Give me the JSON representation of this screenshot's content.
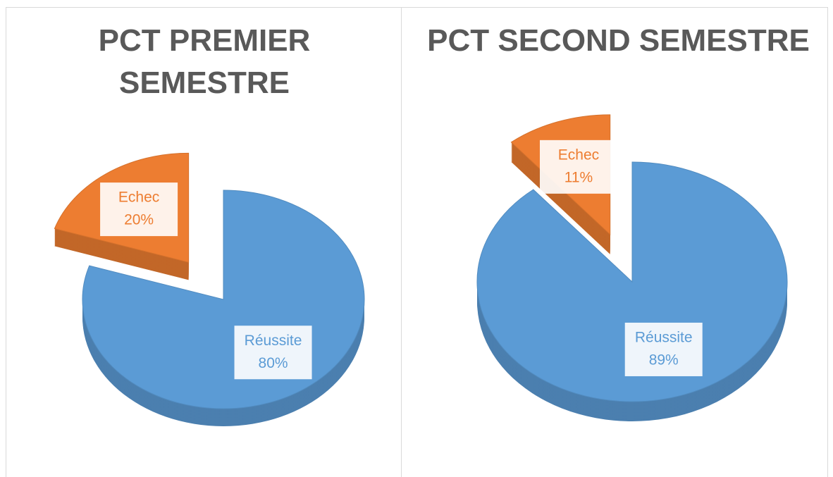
{
  "chart_data": [
    {
      "type": "pie",
      "title": "PCT PREMIER SEMESTRE",
      "categories": [
        "Réussite",
        "Echec"
      ],
      "values": [
        80,
        20
      ],
      "value_labels": [
        "80%",
        "20%"
      ],
      "colors": [
        "#5b9bd5",
        "#ed7d31"
      ],
      "explode": [
        false,
        true
      ]
    },
    {
      "type": "pie",
      "title": "PCT SECOND SEMESTRE",
      "categories": [
        "Réussite",
        "Echec"
      ],
      "values": [
        89,
        11
      ],
      "value_labels": [
        "89%",
        "11%"
      ],
      "colors": [
        "#5b9bd5",
        "#ed7d31"
      ],
      "explode": [
        false,
        true
      ]
    }
  ]
}
